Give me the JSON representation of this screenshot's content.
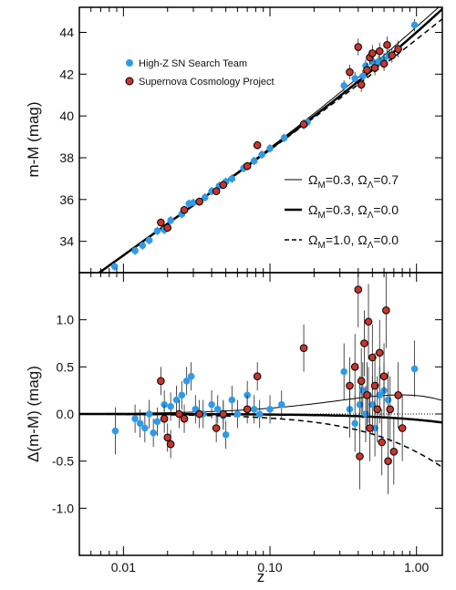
{
  "chart_data": [
    {
      "panel": "top",
      "type": "scatter",
      "x_scale": "log",
      "xlim": [
        0.005,
        1.5
      ],
      "ylim": [
        32.5,
        45.2
      ],
      "ylabel": "m-M (mag)",
      "yticks": [
        34,
        36,
        38,
        40,
        42,
        44
      ],
      "ytick_labels": [
        "34",
        "36",
        "38",
        "40",
        "42",
        "44"
      ],
      "legend": {
        "placement": "top-left",
        "entries": [
          {
            "label": "High-Z SN Search Team",
            "color": "#2f9be8",
            "marker": "circle"
          },
          {
            "label": "Supernova Cosmology Project",
            "color": "#c8352b",
            "marker": "circle-outlined"
          }
        ]
      },
      "models": [
        {
          "om": "Ω",
          "om_sub": "M",
          "om_val": "=0.3, ",
          "ol": "Ω",
          "ol_sub": "Λ",
          "ol_val": "=0.7",
          "style": "thin-solid"
        },
        {
          "om": "Ω",
          "om_sub": "M",
          "om_val": "=0.3, ",
          "ol": "Ω",
          "ol_sub": "Λ",
          "ol_val": "=0.0",
          "style": "thick-solid"
        },
        {
          "om": "Ω",
          "om_sub": "M",
          "om_val": "=1.0, ",
          "ol": "Ω",
          "ol_sub": "Λ",
          "ol_val": "=0.0",
          "style": "dashed"
        }
      ],
      "series": [
        {
          "name": "High-Z SN Search Team",
          "points": [
            {
              "x": 0.0087,
              "y": 32.8,
              "e": 0.2
            },
            {
              "x": 0.012,
              "y": 33.55,
              "e": 0.2
            },
            {
              "x": 0.0135,
              "y": 33.8,
              "e": 0.2
            },
            {
              "x": 0.015,
              "y": 34.05,
              "e": 0.2
            },
            {
              "x": 0.017,
              "y": 34.5,
              "e": 0.2
            },
            {
              "x": 0.019,
              "y": 34.55,
              "e": 0.2
            },
            {
              "x": 0.021,
              "y": 35.0,
              "e": 0.2
            },
            {
              "x": 0.025,
              "y": 35.3,
              "e": 0.2
            },
            {
              "x": 0.028,
              "y": 35.8,
              "e": 0.2
            },
            {
              "x": 0.03,
              "y": 35.85,
              "e": 0.2
            },
            {
              "x": 0.036,
              "y": 36.1,
              "e": 0.2
            },
            {
              "x": 0.04,
              "y": 36.4,
              "e": 0.2
            },
            {
              "x": 0.045,
              "y": 36.65,
              "e": 0.2
            },
            {
              "x": 0.05,
              "y": 36.85,
              "e": 0.2
            },
            {
              "x": 0.055,
              "y": 37.0,
              "e": 0.2
            },
            {
              "x": 0.066,
              "y": 37.5,
              "e": 0.2
            },
            {
              "x": 0.078,
              "y": 37.85,
              "e": 0.2
            },
            {
              "x": 0.088,
              "y": 38.15,
              "e": 0.2
            },
            {
              "x": 0.1,
              "y": 38.45,
              "e": 0.2
            },
            {
              "x": 0.125,
              "y": 38.95,
              "e": 0.2
            },
            {
              "x": 0.18,
              "y": 39.7,
              "e": 0.2
            },
            {
              "x": 0.32,
              "y": 41.45,
              "e": 0.25
            },
            {
              "x": 0.38,
              "y": 41.8,
              "e": 0.3
            },
            {
              "x": 0.43,
              "y": 41.9,
              "e": 0.3
            },
            {
              "x": 0.45,
              "y": 42.4,
              "e": 0.3
            },
            {
              "x": 0.5,
              "y": 42.6,
              "e": 0.3
            },
            {
              "x": 0.55,
              "y": 42.6,
              "e": 0.3
            },
            {
              "x": 0.6,
              "y": 42.7,
              "e": 0.3
            },
            {
              "x": 0.65,
              "y": 42.9,
              "e": 0.3
            },
            {
              "x": 0.97,
              "y": 44.35,
              "e": 0.3
            }
          ]
        },
        {
          "name": "Supernova Cosmology Project",
          "points": [
            {
              "x": 0.018,
              "y": 34.9,
              "e": 0.2
            },
            {
              "x": 0.02,
              "y": 34.65,
              "e": 0.2
            },
            {
              "x": 0.026,
              "y": 35.5,
              "e": 0.2
            },
            {
              "x": 0.033,
              "y": 35.9,
              "e": 0.2
            },
            {
              "x": 0.043,
              "y": 36.4,
              "e": 0.2
            },
            {
              "x": 0.048,
              "y": 36.7,
              "e": 0.2
            },
            {
              "x": 0.07,
              "y": 37.6,
              "e": 0.2
            },
            {
              "x": 0.082,
              "y": 38.6,
              "e": 0.2
            },
            {
              "x": 0.17,
              "y": 39.6,
              "e": 0.25
            },
            {
              "x": 0.35,
              "y": 42.1,
              "e": 0.35
            },
            {
              "x": 0.4,
              "y": 43.3,
              "e": 0.4
            },
            {
              "x": 0.42,
              "y": 41.5,
              "e": 0.35
            },
            {
              "x": 0.46,
              "y": 42.2,
              "e": 0.35
            },
            {
              "x": 0.48,
              "y": 42.8,
              "e": 0.35
            },
            {
              "x": 0.5,
              "y": 43.0,
              "e": 0.4
            },
            {
              "x": 0.52,
              "y": 42.3,
              "e": 0.35
            },
            {
              "x": 0.56,
              "y": 43.1,
              "e": 0.4
            },
            {
              "x": 0.6,
              "y": 42.5,
              "e": 0.35
            },
            {
              "x": 0.63,
              "y": 43.4,
              "e": 0.4
            },
            {
              "x": 0.68,
              "y": 42.9,
              "e": 0.35
            },
            {
              "x": 0.75,
              "y": 43.2,
              "e": 0.4
            }
          ]
        }
      ]
    },
    {
      "panel": "bottom",
      "type": "scatter",
      "x_scale": "log",
      "xlim": [
        0.005,
        1.5
      ],
      "ylim": [
        -1.5,
        1.5
      ],
      "xlabel": "z",
      "ylabel": "Δ(m-M) (mag)",
      "xticks": [
        0.01,
        0.1,
        1.0
      ],
      "xtick_labels": [
        "0.01",
        "0.10",
        "1.00"
      ],
      "yticks": [
        -1.0,
        -0.5,
        0.0,
        0.5,
        1.0
      ],
      "ytick_labels": [
        "-1.0",
        "-0.5",
        "0.0",
        "0.5",
        "1.0"
      ],
      "series": [
        {
          "name": "High-Z SN Search Team",
          "points": [
            {
              "x": 0.0088,
              "y": -0.18,
              "e": 0.25
            },
            {
              "x": 0.012,
              "y": -0.05,
              "e": 0.15
            },
            {
              "x": 0.013,
              "y": -0.1,
              "e": 0.15
            },
            {
              "x": 0.014,
              "y": -0.15,
              "e": 0.15
            },
            {
              "x": 0.015,
              "y": 0.0,
              "e": 0.15
            },
            {
              "x": 0.016,
              "y": -0.2,
              "e": 0.15
            },
            {
              "x": 0.017,
              "y": -0.08,
              "e": 0.15
            },
            {
              "x": 0.019,
              "y": 0.1,
              "e": 0.15
            },
            {
              "x": 0.021,
              "y": 0.08,
              "e": 0.15
            },
            {
              "x": 0.023,
              "y": 0.15,
              "e": 0.15
            },
            {
              "x": 0.025,
              "y": 0.2,
              "e": 0.15
            },
            {
              "x": 0.027,
              "y": 0.35,
              "e": 0.15
            },
            {
              "x": 0.029,
              "y": 0.4,
              "e": 0.15
            },
            {
              "x": 0.031,
              "y": 0.05,
              "e": 0.15
            },
            {
              "x": 0.035,
              "y": 0.0,
              "e": 0.15
            },
            {
              "x": 0.04,
              "y": 0.1,
              "e": 0.15
            },
            {
              "x": 0.044,
              "y": 0.05,
              "e": 0.15
            },
            {
              "x": 0.048,
              "y": -0.02,
              "e": 0.15
            },
            {
              "x": 0.05,
              "y": -0.22,
              "e": 0.15
            },
            {
              "x": 0.055,
              "y": 0.15,
              "e": 0.15
            },
            {
              "x": 0.06,
              "y": 0.0,
              "e": 0.15
            },
            {
              "x": 0.07,
              "y": 0.2,
              "e": 0.15
            },
            {
              "x": 0.078,
              "y": 0.05,
              "e": 0.15
            },
            {
              "x": 0.085,
              "y": 0.0,
              "e": 0.15
            },
            {
              "x": 0.1,
              "y": 0.05,
              "e": 0.15
            },
            {
              "x": 0.12,
              "y": 0.1,
              "e": 0.15
            },
            {
              "x": 0.32,
              "y": 0.45,
              "e": 0.3
            },
            {
              "x": 0.35,
              "y": 0.05,
              "e": 0.3
            },
            {
              "x": 0.38,
              "y": -0.1,
              "e": 0.3
            },
            {
              "x": 0.41,
              "y": 0.1,
              "e": 0.3
            },
            {
              "x": 0.43,
              "y": 0.25,
              "e": 0.3
            },
            {
              "x": 0.45,
              "y": 0.0,
              "e": 0.3
            },
            {
              "x": 0.47,
              "y": 0.2,
              "e": 0.3
            },
            {
              "x": 0.5,
              "y": 0.1,
              "e": 0.3
            },
            {
              "x": 0.52,
              "y": -0.15,
              "e": 0.3
            },
            {
              "x": 0.56,
              "y": 0.2,
              "e": 0.3
            },
            {
              "x": 0.6,
              "y": 0.25,
              "e": 0.3
            },
            {
              "x": 0.64,
              "y": 0.15,
              "e": 0.3
            },
            {
              "x": 0.97,
              "y": 0.48,
              "e": 0.3
            }
          ]
        },
        {
          "name": "Supernova Cosmology Project",
          "points": [
            {
              "x": 0.018,
              "y": 0.35,
              "e": 0.15
            },
            {
              "x": 0.019,
              "y": -0.05,
              "e": 0.15
            },
            {
              "x": 0.02,
              "y": -0.25,
              "e": 0.15
            },
            {
              "x": 0.021,
              "y": -0.32,
              "e": 0.15
            },
            {
              "x": 0.024,
              "y": 0.0,
              "e": 0.15
            },
            {
              "x": 0.026,
              "y": -0.05,
              "e": 0.15
            },
            {
              "x": 0.033,
              "y": 0.0,
              "e": 0.15
            },
            {
              "x": 0.043,
              "y": -0.15,
              "e": 0.15
            },
            {
              "x": 0.048,
              "y": 0.0,
              "e": 0.15
            },
            {
              "x": 0.07,
              "y": 0.05,
              "e": 0.15
            },
            {
              "x": 0.082,
              "y": 0.4,
              "e": 0.15
            },
            {
              "x": 0.17,
              "y": 0.7,
              "e": 0.25
            },
            {
              "x": 0.35,
              "y": 0.3,
              "e": 0.3
            },
            {
              "x": 0.38,
              "y": 0.5,
              "e": 0.35
            },
            {
              "x": 0.4,
              "y": 1.32,
              "e": 0.4
            },
            {
              "x": 0.41,
              "y": -0.45,
              "e": 0.35
            },
            {
              "x": 0.42,
              "y": 0.35,
              "e": 0.35
            },
            {
              "x": 0.44,
              "y": 0.75,
              "e": 0.35
            },
            {
              "x": 0.46,
              "y": 0.2,
              "e": 0.35
            },
            {
              "x": 0.47,
              "y": 0.98,
              "e": 0.4
            },
            {
              "x": 0.48,
              "y": -0.15,
              "e": 0.35
            },
            {
              "x": 0.5,
              "y": 0.6,
              "e": 0.35
            },
            {
              "x": 0.52,
              "y": 0.3,
              "e": 0.35
            },
            {
              "x": 0.54,
              "y": 0.05,
              "e": 0.35
            },
            {
              "x": 0.56,
              "y": 0.65,
              "e": 0.35
            },
            {
              "x": 0.58,
              "y": -0.3,
              "e": 0.35
            },
            {
              "x": 0.6,
              "y": 0.4,
              "e": 0.35
            },
            {
              "x": 0.62,
              "y": 1.1,
              "e": 0.4
            },
            {
              "x": 0.64,
              "y": -0.5,
              "e": 0.35
            },
            {
              "x": 0.66,
              "y": 0.05,
              "e": 0.35
            },
            {
              "x": 0.7,
              "y": -0.4,
              "e": 0.35
            },
            {
              "x": 0.75,
              "y": 0.2,
              "e": 0.35
            },
            {
              "x": 0.8,
              "y": -0.15,
              "e": 0.35
            }
          ]
        }
      ]
    }
  ]
}
